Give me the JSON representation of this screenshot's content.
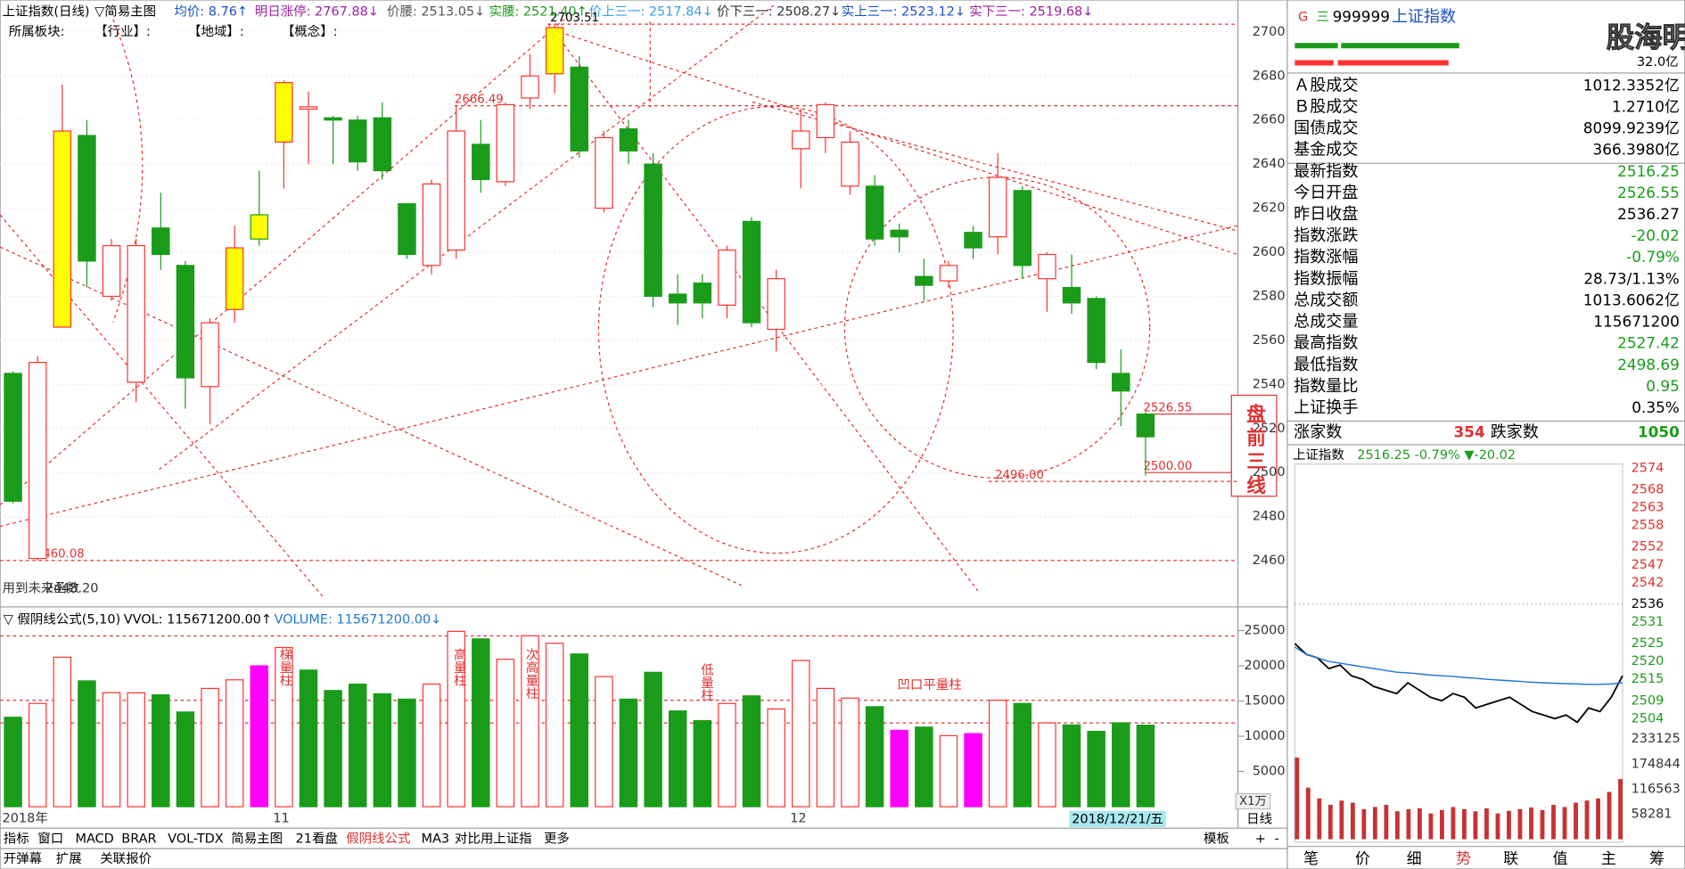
{
  "header": {
    "title": "上证指数(日线)",
    "template": "▽简易主图",
    "items": [
      "均价: 8.76↑",
      "明日涨停: 2767.88↓",
      "价腰: 2513.05↓",
      "实腰: 2521.40↑",
      "价上三一: 2517.84↓",
      "价下三一: 2508.27↓",
      "实上三一: 2523.12↓",
      "实下三一: 2519.68↓"
    ],
    "sector": [
      "所属板块:",
      "【行业】:",
      "【地域】:",
      "【概念】:"
    ]
  },
  "chart_data": [
    {
      "type": "candlestick",
      "open": [
        2545,
        2461,
        2566,
        2653,
        2580,
        2541,
        2611,
        2594,
        2539,
        2574,
        2617,
        2650,
        2665,
        2661,
        2660,
        2661,
        2622,
        2594,
        2601,
        2649,
        2632,
        2670,
        2681,
        2684,
        2620,
        2656,
        2640,
        2581,
        2586,
        2576,
        2614,
        2565,
        2647,
        2652,
        2630,
        2630,
        2610,
        2589,
        2587,
        2609,
        2607,
        2628,
        2588,
        2584,
        2579,
        2545,
        2526.55
      ],
      "high": [
        2546,
        2553,
        2676,
        2660,
        2606,
        2606,
        2627,
        2596,
        2570,
        2612,
        2637,
        2678,
        2673,
        2662,
        2662,
        2668,
        2622,
        2633,
        2666.49,
        2660,
        2668,
        2690,
        2703.51,
        2689,
        2655,
        2660,
        2645,
        2590,
        2590,
        2603,
        2616,
        2592,
        2665,
        2668,
        2655,
        2635,
        2613,
        2597,
        2596,
        2612,
        2645,
        2630,
        2600,
        2599,
        2580,
        2556,
        2527.42
      ],
      "low": [
        2486,
        2460.08,
        2566,
        2584,
        2578,
        2532,
        2592,
        2529,
        2522,
        2568,
        2603,
        2629,
        2640,
        2640,
        2637,
        2633,
        2597,
        2590,
        2597,
        2627,
        2630,
        2665,
        2672,
        2643,
        2618,
        2640,
        2575,
        2567,
        2570,
        2570,
        2566,
        2555,
        2629,
        2645,
        2626,
        2603,
        2600,
        2578,
        2584,
        2597,
        2599,
        2588,
        2573,
        2572,
        2547,
        2521,
        2498.69
      ],
      "close": [
        2487,
        2550,
        2655,
        2596,
        2603,
        2603,
        2599,
        2543,
        2568,
        2602,
        2606,
        2677,
        2666,
        2660,
        2641,
        2637,
        2599,
        2631,
        2655,
        2633,
        2667,
        2680,
        2702,
        2646,
        2652,
        2646,
        2580,
        2577,
        2577,
        2601,
        2568,
        2588,
        2655,
        2667,
        2650,
        2606,
        2607,
        2585,
        2594,
        2602,
        2634,
        2594,
        2599,
        2577,
        2550,
        2537,
        2516.25
      ],
      "up_color": "#ff3232",
      "down_color": "#1a9c1a",
      "highlight_color": "#ffff00",
      "highlighted": [
        2,
        9,
        10,
        11,
        22
      ],
      "ylim": [
        2440,
        2714
      ],
      "yticks": [
        2460,
        2480,
        2500,
        2520,
        2540,
        2560,
        2580,
        2600,
        2620,
        2640,
        2660,
        2680,
        2700
      ],
      "grid": true,
      "levels": [
        2703.51,
        2666.49,
        2526.55,
        {
          "value": 2500,
          "label": "2500.00"
        },
        {
          "value": 2496,
          "label": "2496.00"
        },
        2460.08
      ],
      "annotations": [
        "用到未来函数",
        "2448.20",
        "盘前三线"
      ]
    },
    {
      "type": "bar",
      "title": "▽ 假阴线公式(5,10)",
      "indicators": [
        "VVOL: 115671200.00↑",
        "VOLUME: 115671200.00↓"
      ],
      "categories": [
        "2018年",
        null,
        null,
        null,
        null,
        null,
        null,
        null,
        null,
        null,
        null,
        "11",
        null,
        null,
        null,
        null,
        null,
        null,
        null,
        null,
        null,
        null,
        null,
        null,
        null,
        null,
        null,
        null,
        null,
        null,
        null,
        null,
        "12",
        null,
        null,
        null,
        null,
        null,
        null,
        null,
        null,
        null,
        null,
        null,
        null,
        null,
        null
      ],
      "values": [
        12700,
        14660,
        21220,
        17860,
        16180,
        16180,
        15880,
        13440,
        16790,
        18010,
        20000,
        22600,
        19390,
        16490,
        17400,
        16030,
        15270,
        17400,
        24890,
        23820,
        20920,
        24270,
        23200,
        21680,
        18470,
        15270,
        19080,
        13590,
        12210,
        14660,
        15730,
        13890,
        20760,
        16790,
        15420,
        14200,
        10840,
        11300,
        10080,
        10380,
        15110,
        14660,
        11910,
        11600,
        10690,
        11910,
        11567.12
      ],
      "colors": [
        "#1a9c1a",
        "#ff3232",
        "#ff3232",
        "#1a9c1a",
        "#ff3232",
        "#ff3232",
        "#1a9c1a",
        "#1a9c1a",
        "#ff3232",
        "#ff3232",
        "#ff00ff",
        "#ff3232",
        "#1a9c1a",
        "#1a9c1a",
        "#1a9c1a",
        "#1a9c1a",
        "#1a9c1a",
        "#ff3232",
        "#ff3232",
        "#1a9c1a",
        "#ff3232",
        "#ff3232",
        "#ff3232",
        "#1a9c1a",
        "#ff3232",
        "#1a9c1a",
        "#1a9c1a",
        "#1a9c1a",
        "#1a9c1a",
        "#ff3232",
        "#1a9c1a",
        "#ff3232",
        "#ff3232",
        "#ff3232",
        "#ff3232",
        "#1a9c1a",
        "#ff00ff",
        "#1a9c1a",
        "#ff3232",
        "#ff00ff",
        "#ff3232",
        "#1a9c1a",
        "#ff3232",
        "#1a9c1a",
        "#1a9c1a",
        "#1a9c1a",
        "#1a9c1a"
      ],
      "hollow_color": "#ff3232",
      "ylim": [
        0,
        27600
      ],
      "yticks": [
        5000,
        10000,
        15000,
        20000,
        25000
      ],
      "unit": "X1万",
      "cursor_label": "2018/12/21/五",
      "annotations": [
        "梯量柱",
        "高量柱",
        "次高量柱",
        "低量柱",
        "凹口平量柱"
      ]
    },
    {
      "type": "line",
      "title": "上证指数",
      "subtitle": "2516.25 -0.79% ▼-20.02",
      "series": [
        {
          "color": "#000000",
          "values": [
            2525,
            2522,
            2521,
            2518,
            2519,
            2516,
            2515,
            2513,
            2512,
            2511,
            2514,
            2512,
            2510,
            2509,
            2511,
            2510,
            2507,
            2508,
            2509,
            2510,
            2508,
            2506,
            2505,
            2504,
            2505,
            2503,
            2507,
            2506,
            2510,
            2516
          ]
        },
        {
          "color": "#1e78d2",
          "values": [
            2524,
            2522,
            2521,
            2520,
            2519.5,
            2519,
            2518.5,
            2518,
            2517.5,
            2517,
            2516.8,
            2516.5,
            2516.2,
            2516,
            2515.8,
            2515.5,
            2515.3,
            2515,
            2514.8,
            2514.6,
            2514.4,
            2514.2,
            2514,
            2513.9,
            2513.8,
            2513.7,
            2513.6,
            2513.6,
            2513.7,
            2514
          ]
        }
      ],
      "ylim": [
        2502,
        2576
      ],
      "yticks": [
        2574,
        2568,
        2563,
        2558,
        2552,
        2547,
        2542,
        2536,
        2531,
        2525,
        2520,
        2515,
        2509,
        2504
      ],
      "volume": {
        "color": "#c83232",
        "values": [
          190000,
          120000,
          95000,
          80000,
          90000,
          85000,
          70000,
          75000,
          80000,
          65000,
          70000,
          72000,
          60000,
          68000,
          75000,
          70000,
          65000,
          72000,
          60000,
          66000,
          70000,
          74000,
          68000,
          80000,
          75000,
          85000,
          90000,
          95000,
          110000,
          140000
        ],
        "ylim": [
          0,
          233125
        ],
        "yticks": [
          58281,
          116563,
          174844,
          233125
        ]
      },
      "tabs": [
        "笔",
        "价",
        "细",
        "势",
        "联",
        "值",
        "主",
        "筹"
      ],
      "active_tab": "势"
    }
  ],
  "quote_panel": {
    "prefix": [
      "G",
      "三"
    ],
    "code": "999999",
    "name": "上证指数",
    "amount": "32.0亿",
    "watermark": "股海明灯",
    "rows": [
      {
        "label": "Ａ股成交",
        "value": "1012.3352亿"
      },
      {
        "label": "Ｂ股成交",
        "value": "1.2710亿"
      },
      {
        "label": "国债成交",
        "value": "8099.9239亿"
      },
      {
        "label": "基金成交",
        "value": "366.3980亿"
      },
      {
        "label": "最新指数",
        "value": "2516.25",
        "color": "#1a9c1a"
      },
      {
        "label": "今日开盘",
        "value": "2526.55",
        "color": "#1a9c1a"
      },
      {
        "label": "昨日收盘",
        "value": "2536.27"
      },
      {
        "label": "指数涨跌",
        "value": "-20.02",
        "color": "#1a9c1a"
      },
      {
        "label": "指数涨幅",
        "value": "-0.79%",
        "color": "#1a9c1a"
      },
      {
        "label": "指数振幅",
        "value": "28.73/1.13%"
      },
      {
        "label": "总成交额",
        "value": "1013.6062亿"
      },
      {
        "label": "总成交量",
        "value": "115671200"
      },
      {
        "label": "最高指数",
        "value": "2527.42",
        "color": "#1a9c1a"
      },
      {
        "label": "最低指数",
        "value": "2498.69",
        "color": "#1a9c1a"
      },
      {
        "label": "指数量比",
        "value": "0.95",
        "color": "#1a9c1a"
      },
      {
        "label": "上证换手",
        "value": "0.35%"
      }
    ],
    "breadth": {
      "up_label": "涨家数",
      "up": "354",
      "down_label": "跌家数",
      "down": "1050"
    }
  },
  "toolbar": {
    "tabs": [
      "指标",
      "窗口",
      "MACD",
      "BRAR",
      "VOL-TDX",
      "简易主图",
      "21看盘",
      "假阴线公式",
      "MA3",
      "对比用上证指",
      "更多"
    ],
    "active": "假阴线公式",
    "right": [
      "模板",
      "日线",
      "+",
      "-"
    ],
    "row2": [
      "开弹幕",
      "扩展",
      "关联报价"
    ]
  }
}
